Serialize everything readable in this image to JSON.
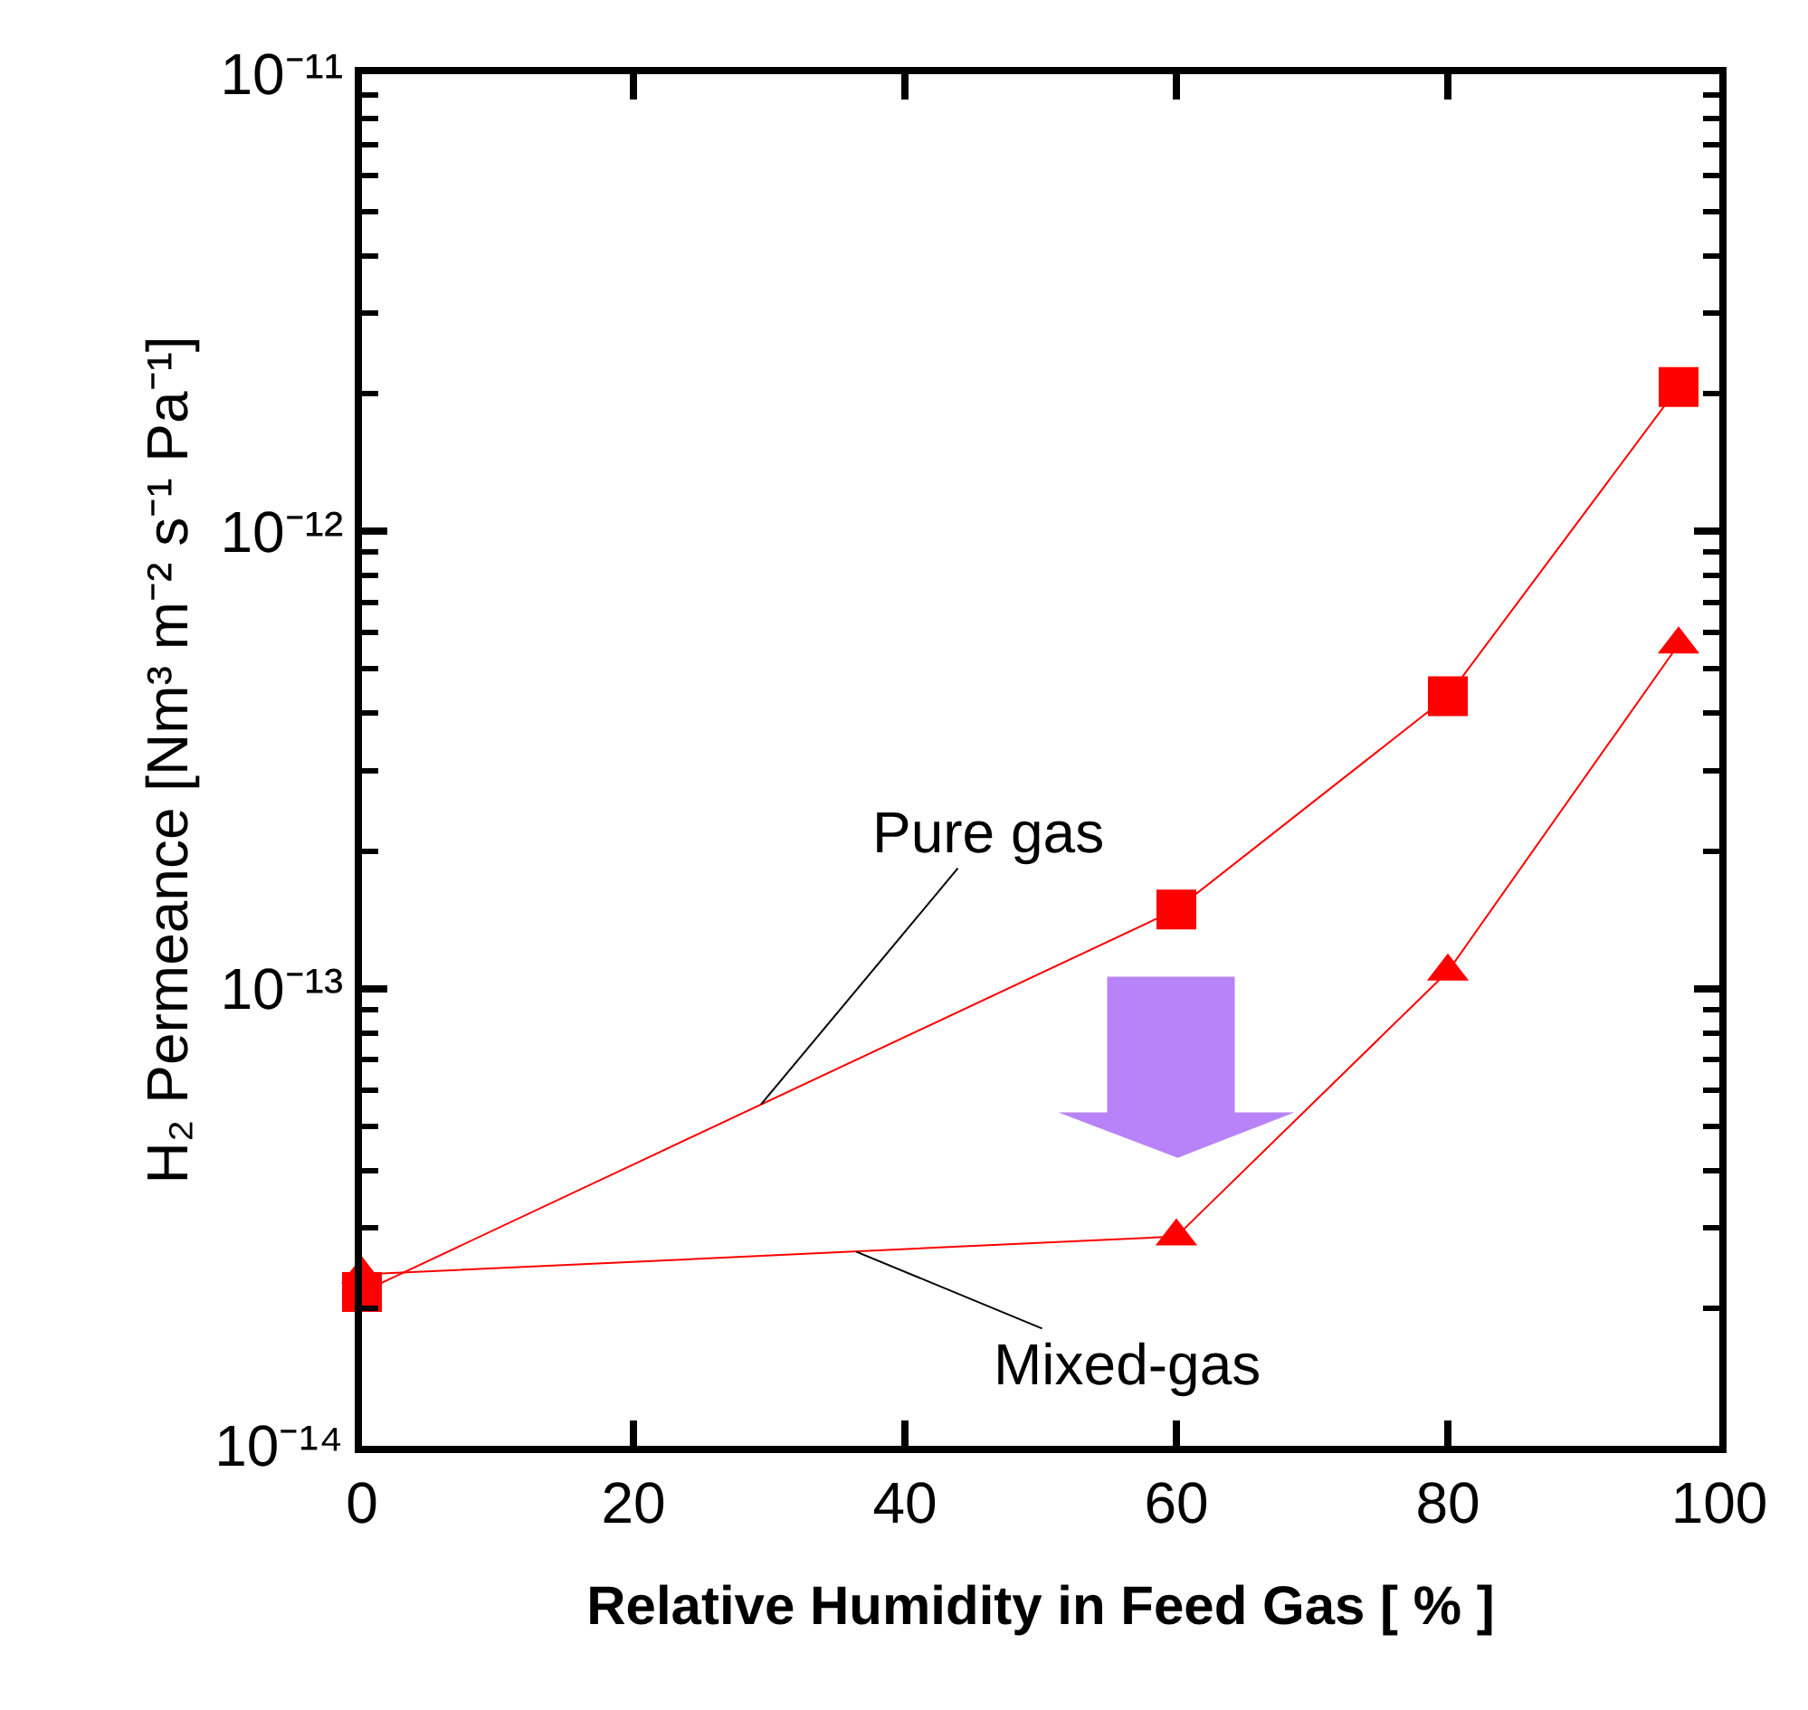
{
  "chart_data": {
    "type": "line",
    "xlabel": "Relative Humidity in Feed Gas [ % ]",
    "ylabel": "H₂ Permeance [Nm³ m⁻² s⁻¹ Pa⁻¹]",
    "x": [
      0,
      60,
      80,
      97
    ],
    "series": [
      {
        "color": "#ff0000",
        "marker": "square",
        "values": [
          2.17e-14,
          1.49e-13,
          4.36e-13,
          2.07e-12
        ]
      },
      {
        "color": "#ff0000",
        "marker": "triangle",
        "values": [
          2.37e-14,
          2.87e-14,
          1.09e-13,
          5.66e-13
        ]
      }
    ],
    "log": "y",
    "xlim": [
      0,
      100
    ],
    "xticks": [
      0,
      20,
      40,
      60,
      80,
      100
    ],
    "ylim": [
      1e-14,
      1e-11
    ],
    "yticks": [
      {
        "value": 1e-14,
        "label": "10⁻¹⁴"
      },
      {
        "value": 2e-14,
        "label": null
      },
      {
        "value": 3e-14,
        "label": null
      },
      {
        "value": 4e-14,
        "label": null
      },
      {
        "value": 5e-14,
        "label": null
      },
      {
        "value": 6e-14,
        "label": null
      },
      {
        "value": 7e-14,
        "label": null
      },
      {
        "value": 8e-14,
        "label": null
      },
      {
        "value": 9e-14,
        "label": null
      },
      {
        "value": 1e-13,
        "label": "10⁻¹³"
      },
      {
        "value": 2e-13,
        "label": null
      },
      {
        "value": 3e-13,
        "label": null
      },
      {
        "value": 4e-13,
        "label": null
      },
      {
        "value": 5e-13,
        "label": null
      },
      {
        "value": 6e-13,
        "label": null
      },
      {
        "value": 7e-13,
        "label": null
      },
      {
        "value": 8e-13,
        "label": null
      },
      {
        "value": 9e-13,
        "label": null
      },
      {
        "value": 1e-12,
        "label": "10⁻¹²"
      },
      {
        "value": 2e-12,
        "label": null
      },
      {
        "value": 3e-12,
        "label": null
      },
      {
        "value": 4e-12,
        "label": null
      },
      {
        "value": 5e-12,
        "label": null
      },
      {
        "value": 6e-12,
        "label": null
      },
      {
        "value": 7e-12,
        "label": null
      },
      {
        "value": 8e-12,
        "label": null
      },
      {
        "value": 9e-12,
        "label": null
      },
      {
        "value": 1e-11,
        "label": "10⁻¹¹"
      }
    ],
    "annotations": [
      {
        "text": "Pure gas",
        "x": 29.4,
        "y": 5.58e-14
      },
      {
        "text": "Mixed-gas",
        "x": 36.4,
        "y": 2.66e-14
      }
    ],
    "line_style": "solid"
  }
}
